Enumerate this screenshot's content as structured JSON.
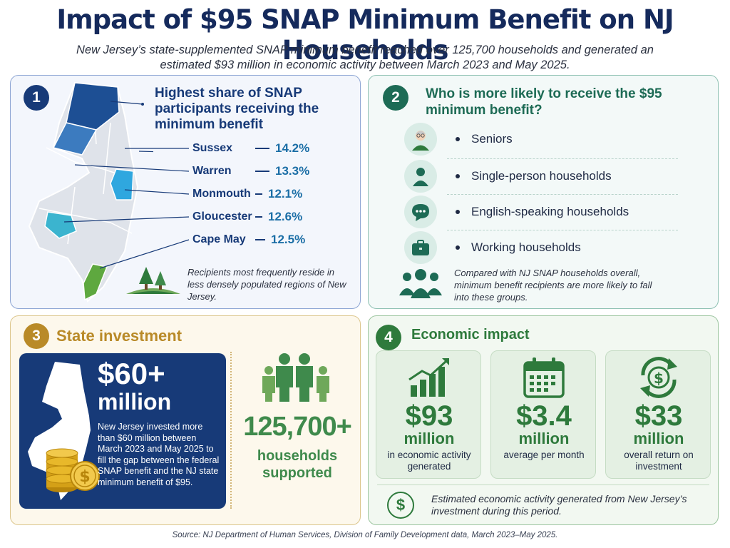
{
  "title": "Impact of $95 SNAP Minimum Benefit on NJ Households",
  "subtitle": "New Jersey’s state-supplemented SNAP minimum benefit reached over 125,700 households and generated an estimated $93 million in economic activity between March 2023 and May 2025.",
  "colors": {
    "navy": "#173a78",
    "teal": "#1d6b55",
    "gold": "#b98a28",
    "green": "#2e7a3c",
    "highlight_blue": "#2a9fd6"
  },
  "panel1": {
    "number": "1",
    "heading": "Highest share of SNAP participants receiving the minimum benefit",
    "counties": [
      {
        "name": "Sussex",
        "value": "14.2%"
      },
      {
        "name": "Warren",
        "value": "13.3%"
      },
      {
        "name": "Monmouth",
        "value": "12.1%"
      },
      {
        "name": "Gloucester",
        "value": "12.6%"
      },
      {
        "name": "Cape May",
        "value": "12.5%"
      }
    ],
    "note": "Recipients most frequently reside in less densely populated regions of New Jersey.",
    "icons": [
      "new-jersey-map-icon",
      "trees-icon"
    ]
  },
  "panel2": {
    "number": "2",
    "heading": "Who is more likely to receive the $95 minimum benefit?",
    "groups": [
      {
        "label": "Seniors",
        "icon": "senior-icon"
      },
      {
        "label": "Single-person households",
        "icon": "person-icon"
      },
      {
        "label": "English-speaking households",
        "icon": "speech-bubble-icon"
      },
      {
        "label": "Working households",
        "icon": "briefcase-icon"
      }
    ],
    "note": "Compared with NJ SNAP households overall, minimum benefit recipients are more likely to fall into these groups."
  },
  "panel3": {
    "number": "3",
    "heading": "State investment",
    "amount_line1": "$60+",
    "amount_line2": "million",
    "description": "New Jersey invested more than $60 million between March 2023 and May 2025 to fill the gap between the federal SNAP benefit and the NJ state minimum benefit of $95.",
    "households_number": "125,700+",
    "households_label": "households supported"
  },
  "panel4": {
    "number": "4",
    "heading": "Economic impact",
    "stats": [
      {
        "value": "$93",
        "unit": "million",
        "desc": "in economic activity generated",
        "icon": "bar-chart-growth-icon"
      },
      {
        "value": "$3.4",
        "unit": "million",
        "desc": "average per month",
        "icon": "calendar-icon"
      },
      {
        "value": "$33",
        "unit": "million",
        "desc": "overall return on investment",
        "icon": "dollar-cycle-icon"
      }
    ],
    "dollar_symbol": "$",
    "note": "Estimated economic activity generated from New Jersey’s investment during this period."
  },
  "source": "Source: NJ Department of Human Services, Division of Family Development data, March 2023–May 2025."
}
